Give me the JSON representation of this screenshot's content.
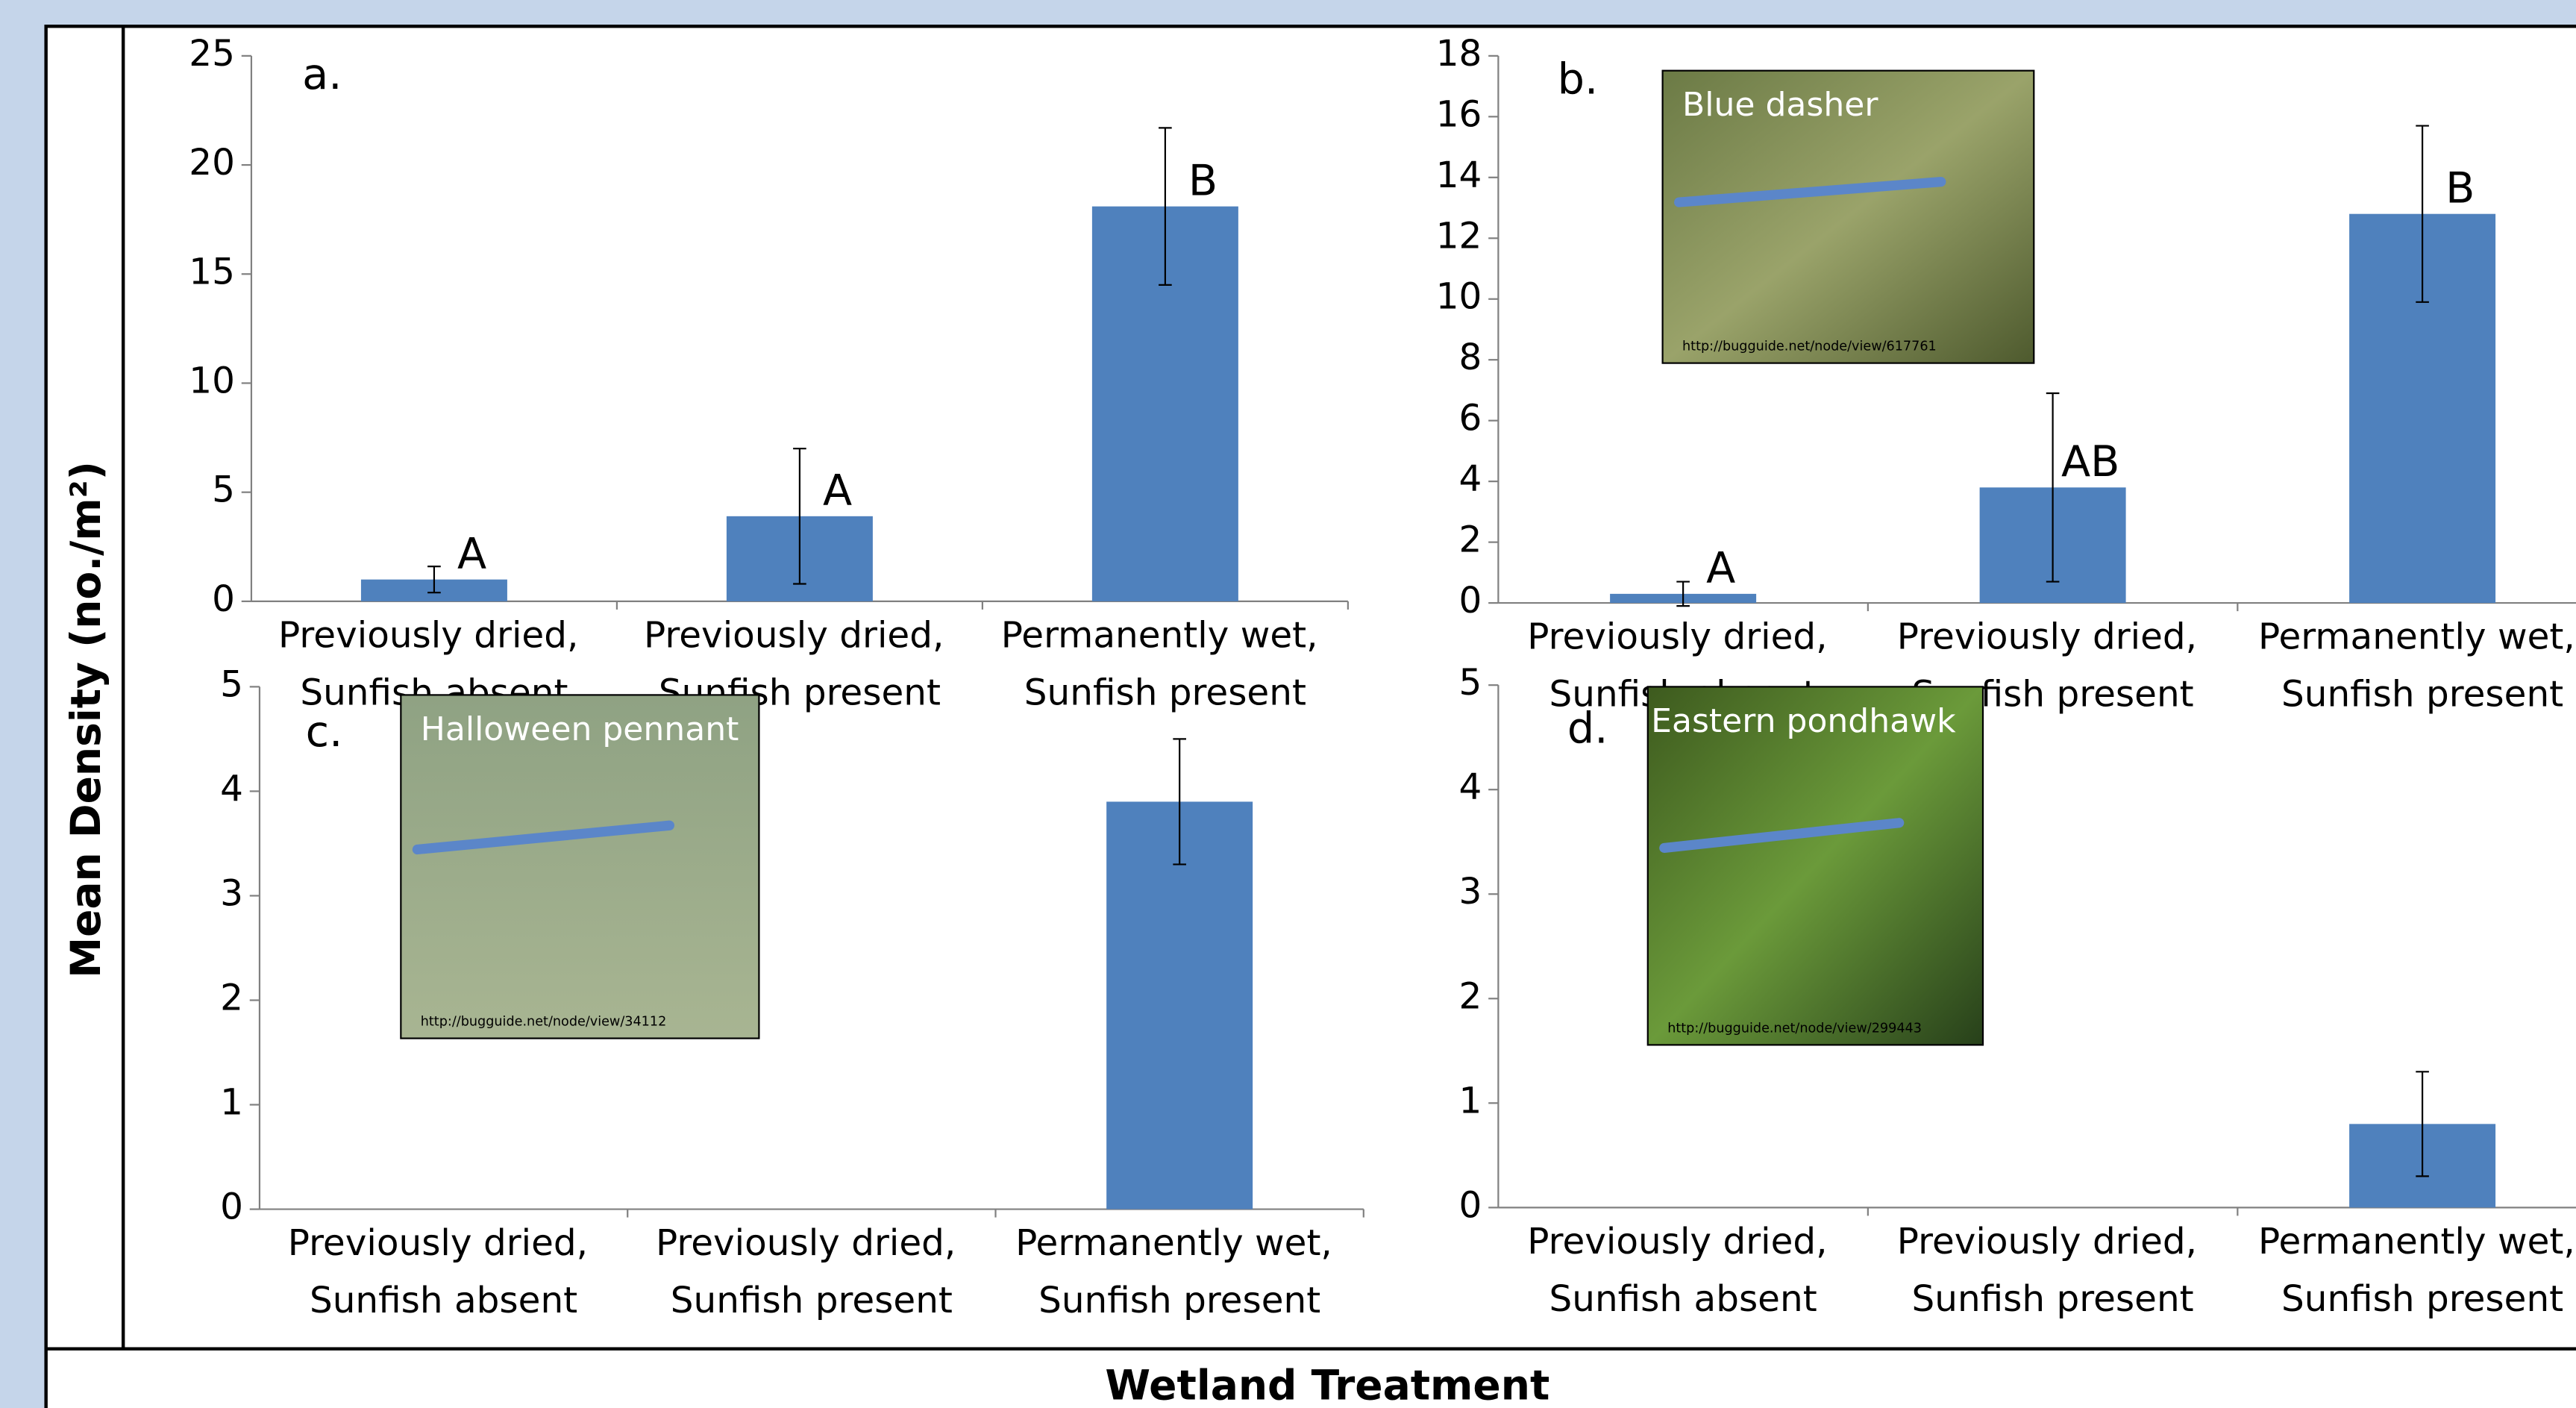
{
  "y_label": "Mean Density (no./m²)",
  "x_label": "Wetland Treatment",
  "chart_data": [
    {
      "type": "bar",
      "panel": "a.",
      "categories": [
        "Previously dried, Sunfish absent",
        "Previously dried, Sunfish present",
        "Permanently wet, Sunfish present"
      ],
      "values": [
        1.0,
        3.9,
        18.1
      ],
      "errors": [
        0.6,
        3.1,
        3.6
      ],
      "annotations": [
        "A",
        "A",
        "B"
      ],
      "color": "#4f81bd",
      "ylim": [
        0,
        25
      ],
      "yticks": [
        0,
        5,
        10,
        15,
        20,
        25
      ]
    },
    {
      "type": "bar",
      "panel": "b.",
      "categories": [
        "Previously dried, Sunfish absent",
        "Previously dried, Sunfish present",
        "Permanently wet, Sunfish present"
      ],
      "values": [
        0.3,
        3.8,
        12.8
      ],
      "errors": [
        0.4,
        3.1,
        2.9
      ],
      "annotations": [
        "A",
        "AB",
        "B"
      ],
      "color": "#4f81bd",
      "ylim": [
        0,
        18
      ],
      "yticks": [
        0,
        2,
        4,
        6,
        8,
        10,
        12,
        14,
        16,
        18
      ],
      "inset": {
        "caption": "Blue dasher",
        "credit": "http://bugguide.net/node/view/617761"
      }
    },
    {
      "type": "bar",
      "panel": "c.",
      "categories": [
        "Previously dried, Sunfish absent",
        "Previously dried, Sunfish present",
        "Permanently wet, Sunfish present"
      ],
      "values": [
        0,
        0,
        3.9
      ],
      "errors": [
        null,
        null,
        0.6
      ],
      "color": "#4f81bd",
      "ylim": [
        0,
        5
      ],
      "yticks": [
        0,
        1,
        2,
        3,
        4,
        5
      ],
      "inset": {
        "caption": "Halloween pennant",
        "credit": "http://bugguide.net/node/view/34112"
      }
    },
    {
      "type": "bar",
      "panel": "d.",
      "categories": [
        "Previously dried, Sunfish absent",
        "Previously dried, Sunfish present",
        "Permanently wet, Sunfish present"
      ],
      "values": [
        0,
        0,
        0.8
      ],
      "errors": [
        null,
        null,
        0.5
      ],
      "color": "#4f81bd",
      "ylim": [
        0,
        5
      ],
      "yticks": [
        0,
        1,
        2,
        3,
        4,
        5
      ],
      "inset": {
        "caption": "Eastern pondhawk",
        "credit": "http://bugguide.net/node/view/299443"
      }
    }
  ]
}
